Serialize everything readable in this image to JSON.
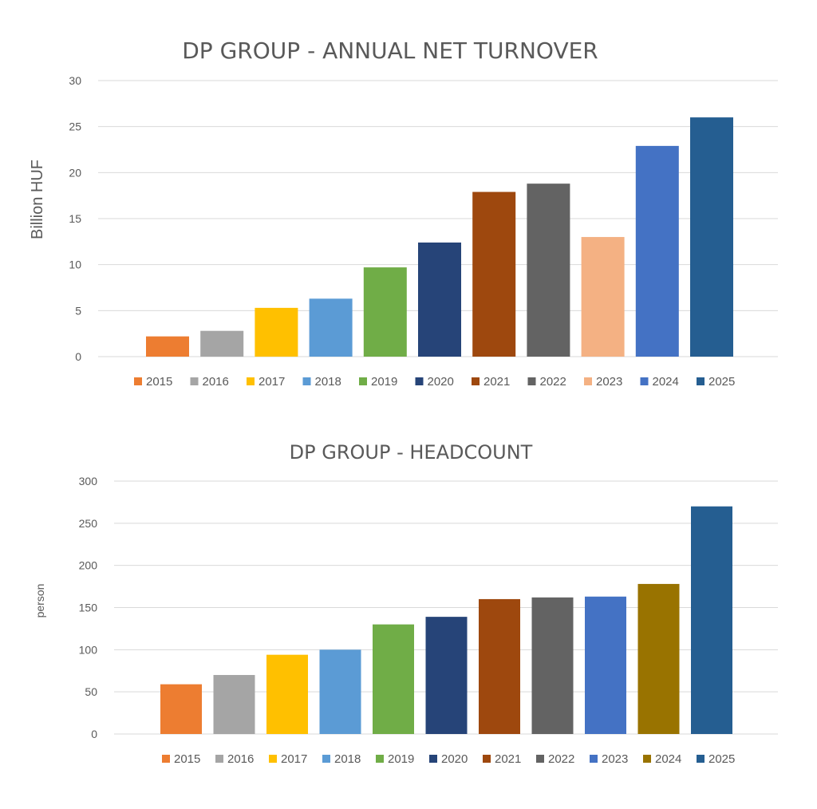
{
  "chart_data": [
    {
      "type": "bar",
      "title": "DP GROUP - ANNUAL NET TURNOVER",
      "ylabel": "Billion HUF",
      "xlabel": "",
      "ylim": [
        0,
        30
      ],
      "yticks": [
        0,
        5,
        10,
        15,
        20,
        25,
        30
      ],
      "grid": true,
      "legend_position": "bottom",
      "series": [
        {
          "name": "2015",
          "value": 2.2,
          "color": "#ED7D31"
        },
        {
          "name": "2016",
          "value": 2.8,
          "color": "#A5A5A5"
        },
        {
          "name": "2017",
          "value": 5.3,
          "color": "#FFC000"
        },
        {
          "name": "2018",
          "value": 6.3,
          "color": "#5B9BD5"
        },
        {
          "name": "2019",
          "value": 9.7,
          "color": "#70AD47"
        },
        {
          "name": "2020",
          "value": 12.4,
          "color": "#264478"
        },
        {
          "name": "2021",
          "value": 17.9,
          "color": "#9E480E"
        },
        {
          "name": "2022",
          "value": 18.8,
          "color": "#636363"
        },
        {
          "name": "2023",
          "value": 13.0,
          "color": "#F4B183"
        },
        {
          "name": "2024",
          "value": 22.9,
          "color": "#4472C4"
        },
        {
          "name": "2025",
          "value": 26.0,
          "color": "#255E91"
        }
      ]
    },
    {
      "type": "bar",
      "title": "DP GROUP -  HEADCOUNT",
      "ylabel": "person",
      "xlabel": "",
      "ylim": [
        0,
        300
      ],
      "yticks": [
        0,
        50,
        100,
        150,
        200,
        250,
        300
      ],
      "grid": true,
      "legend_position": "bottom",
      "series": [
        {
          "name": "2015",
          "value": 59,
          "color": "#ED7D31"
        },
        {
          "name": "2016",
          "value": 70,
          "color": "#A5A5A5"
        },
        {
          "name": "2017",
          "value": 94,
          "color": "#FFC000"
        },
        {
          "name": "2018",
          "value": 100,
          "color": "#5B9BD5"
        },
        {
          "name": "2019",
          "value": 130,
          "color": "#70AD47"
        },
        {
          "name": "2020",
          "value": 139,
          "color": "#264478"
        },
        {
          "name": "2021",
          "value": 160,
          "color": "#9E480E"
        },
        {
          "name": "2022",
          "value": 162,
          "color": "#636363"
        },
        {
          "name": "2023",
          "value": 163,
          "color": "#4472C4"
        },
        {
          "name": "2024",
          "value": 178,
          "color": "#997300"
        },
        {
          "name": "2025",
          "value": 270,
          "color": "#255E91"
        }
      ]
    }
  ]
}
